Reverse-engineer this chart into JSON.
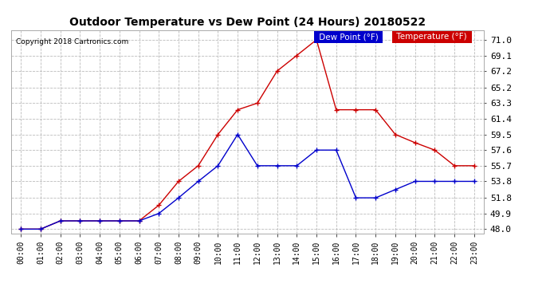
{
  "title": "Outdoor Temperature vs Dew Point (24 Hours) 20180522",
  "copyright": "Copyright 2018 Cartronics.com",
  "hours": [
    0,
    1,
    2,
    3,
    4,
    5,
    6,
    7,
    8,
    9,
    10,
    11,
    12,
    13,
    14,
    15,
    16,
    17,
    18,
    19,
    20,
    21,
    22,
    23
  ],
  "temperature": [
    48.0,
    48.0,
    49.0,
    49.0,
    49.0,
    49.0,
    49.0,
    50.9,
    53.8,
    55.7,
    59.5,
    62.5,
    63.3,
    67.2,
    69.1,
    71.0,
    62.5,
    62.5,
    62.5,
    59.5,
    58.5,
    57.6,
    55.7,
    55.7
  ],
  "dew_point": [
    48.0,
    48.0,
    49.0,
    49.0,
    49.0,
    49.0,
    49.0,
    49.9,
    51.8,
    53.8,
    55.7,
    59.5,
    55.7,
    55.7,
    55.7,
    57.6,
    57.6,
    51.8,
    51.8,
    52.8,
    53.8,
    53.8,
    53.8,
    53.8
  ],
  "temp_color": "#cc0000",
  "dew_color": "#0000cc",
  "ylim_min": 47.5,
  "ylim_max": 72.2,
  "yticks": [
    48.0,
    49.9,
    51.8,
    53.8,
    55.7,
    57.6,
    59.5,
    61.4,
    63.3,
    65.2,
    67.2,
    69.1,
    71.0
  ],
  "background_color": "#ffffff",
  "grid_color": "#bbbbbb",
  "legend_dew_bg": "#0000cc",
  "legend_temp_bg": "#cc0000",
  "legend_text_color": "#ffffff",
  "fig_width": 6.9,
  "fig_height": 3.75,
  "dpi": 100
}
